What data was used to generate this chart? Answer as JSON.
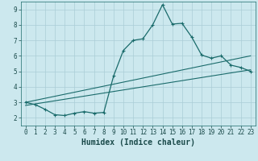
{
  "xlabel": "Humidex (Indice chaleur)",
  "bg_color": "#cce8ee",
  "grid_color": "#aacdd6",
  "line_color": "#1a6b6b",
  "xlim": [
    -0.5,
    23.5
  ],
  "ylim": [
    1.5,
    9.5
  ],
  "xticks": [
    0,
    1,
    2,
    3,
    4,
    5,
    6,
    7,
    8,
    9,
    10,
    11,
    12,
    13,
    14,
    15,
    16,
    17,
    18,
    19,
    20,
    21,
    22,
    23
  ],
  "yticks": [
    2,
    3,
    4,
    5,
    6,
    7,
    8,
    9
  ],
  "curve1_x": [
    0,
    1,
    2,
    3,
    4,
    5,
    6,
    7,
    8,
    9,
    10,
    11,
    12,
    13,
    14,
    15,
    16,
    17,
    18,
    19,
    20,
    21,
    22,
    23
  ],
  "curve1_y": [
    3.0,
    2.85,
    2.55,
    2.2,
    2.15,
    2.3,
    2.4,
    2.3,
    2.35,
    4.7,
    6.35,
    7.0,
    7.1,
    8.0,
    9.3,
    8.05,
    8.1,
    7.2,
    6.05,
    5.85,
    6.0,
    5.4,
    5.25,
    5.0
  ],
  "line2_x": [
    0,
    23
  ],
  "line2_y": [
    3.0,
    6.0
  ],
  "line3_x": [
    0,
    23
  ],
  "line3_y": [
    2.8,
    5.1
  ],
  "spine_color": "#1a6b6b",
  "tick_color": "#1a4a4a",
  "tick_fontsize": 5.5,
  "xlabel_fontsize": 7
}
